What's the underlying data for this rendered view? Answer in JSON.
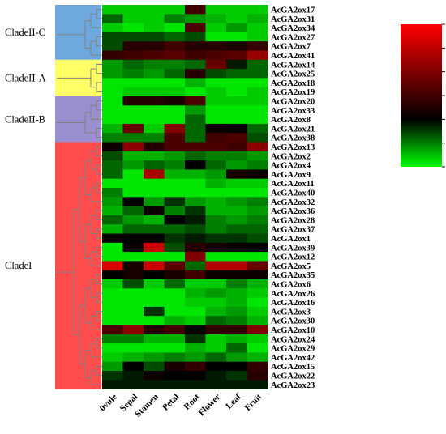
{
  "chart_data": {
    "type": "heatmap",
    "columns": [
      "0vule",
      "Sepal",
      "Stamen",
      "Petal",
      "Root",
      "Flower",
      "Leaf",
      "Fruit"
    ],
    "rows": [
      "AcGA2ox17",
      "AcGA2ox31",
      "AcGA2ox34",
      "AcGA2ox27",
      "AcGA2ox7",
      "AcGA2ox41",
      "AcGA2ox14",
      "AcGA2ox25",
      "AcGA2ox18",
      "AcGA2ox19",
      "AcGA2ox20",
      "AcGA2ox33",
      "AcGA2ox8",
      "AcGA2ox21",
      "AcGA2ox38",
      "AcGA2ox13",
      "AcGA2ox2",
      "AcGA2ox4",
      "AcGA2ox9",
      "AcGA2ox11",
      "AcGA2ox40",
      "AcGA2ox32",
      "AcGA2ox36",
      "AcGA2ox28",
      "AcGA2ox37",
      "AcGA2ox1",
      "AcGA2ox39",
      "AcGA2ox12",
      "AcGA2ox5",
      "AcGA2ox35",
      "AcGA2ox6",
      "AcGA2ox26",
      "AcGA2ox16",
      "AcGA2ox3",
      "AcGA2ox30",
      "AcGA2ox10",
      "AcGA2ox24",
      "AcGA2ox29",
      "AcGA2ox42",
      "AcGA2ox15",
      "AcGA2ox22",
      "AcGA2ox23"
    ],
    "values": [
      [
        0.2,
        0.2,
        0.2,
        0.2,
        1.5,
        0.2,
        0.2,
        0.2
      ],
      [
        0.6,
        0.2,
        0.2,
        0.5,
        0.4,
        0.3,
        0.2,
        0.3
      ],
      [
        0.2,
        0.1,
        0.2,
        0.1,
        1.6,
        0.2,
        0.4,
        0.2
      ],
      [
        0.7,
        0.7,
        0.7,
        0.6,
        0.7,
        0.1,
        0.1,
        0.2
      ],
      [
        0.7,
        1.3,
        1.3,
        1.5,
        1.3,
        1.3,
        1.2,
        1.4
      ],
      [
        1.4,
        1.5,
        1.6,
        1.7,
        1.5,
        1.6,
        1.7,
        2.2
      ],
      [
        0.4,
        0.6,
        0.5,
        0.5,
        0.6,
        1.8,
        0.9,
        0.6
      ],
      [
        0.4,
        0.5,
        0.4,
        0.6,
        1.3,
        0.7,
        0.6,
        0.6
      ],
      [
        0.1,
        0.1,
        0.1,
        0.1,
        0.3,
        0.1,
        0.1,
        0.1
      ],
      [
        0.1,
        0.2,
        0.2,
        0.2,
        0.1,
        0.2,
        0.1,
        0.2
      ],
      [
        0.1,
        1.3,
        1.3,
        1.2,
        1.6,
        0.2,
        0.2,
        0.2
      ],
      [
        0.1,
        0.1,
        0.1,
        0.1,
        0.4,
        0.1,
        0.1,
        0.1
      ],
      [
        0.1,
        0.1,
        0.1,
        0.1,
        0.6,
        0.1,
        0.1,
        0.1
      ],
      [
        0.3,
        1.8,
        0.2,
        2.0,
        0.6,
        1.1,
        1.0,
        0.6
      ],
      [
        0.5,
        0.5,
        0.5,
        1.6,
        0.6,
        1.5,
        1.6,
        0.7
      ],
      [
        1.1,
        2.1,
        1.3,
        1.6,
        1.6,
        1.6,
        1.5,
        2.1
      ],
      [
        0.7,
        0.3,
        0.3,
        0.4,
        0.6,
        0.5,
        0.5,
        0.4
      ],
      [
        0.6,
        0.4,
        0.6,
        0.5,
        1.0,
        0.6,
        0.4,
        0.5
      ],
      [
        0.6,
        0.1,
        2.3,
        0.3,
        0.3,
        0.4,
        1.2,
        1.1
      ],
      [
        0.1,
        0.1,
        0.1,
        0.1,
        0.1,
        0.3,
        0.2,
        0.2
      ],
      [
        0.5,
        0.1,
        0.1,
        0.1,
        0.1,
        0.1,
        0.1,
        0.1
      ],
      [
        0.4,
        1.0,
        0.4,
        0.8,
        0.4,
        0.3,
        0.4,
        0.5
      ],
      [
        0.3,
        0.6,
        1.1,
        0.5,
        0.8,
        0.3,
        0.3,
        0.4
      ],
      [
        0.6,
        0.4,
        0.3,
        1.0,
        0.9,
        0.5,
        0.4,
        0.5
      ],
      [
        0.3,
        0.6,
        0.6,
        0.6,
        0.7,
        0.5,
        0.6,
        0.6
      ],
      [
        1.1,
        1.0,
        1.0,
        0.8,
        0.9,
        0.8,
        0.8,
        0.7
      ],
      [
        0.1,
        1.1,
        2.6,
        0.7,
        1.3,
        1.2,
        1.1,
        1.0
      ],
      [
        0.1,
        0.1,
        0.1,
        0.1,
        2.0,
        0.1,
        0.1,
        0.1
      ],
      [
        2.7,
        1.2,
        2.6,
        1.7,
        0.6,
        2.4,
        2.4,
        1.8
      ],
      [
        1.0,
        1.2,
        1.0,
        1.2,
        1.5,
        1.1,
        1.1,
        1.1
      ],
      [
        0.2,
        0.7,
        0.2,
        0.6,
        0.2,
        0.2,
        0.5,
        0.3
      ],
      [
        0.1,
        0.1,
        0.1,
        0.1,
        0.3,
        0.4,
        0.3,
        0.2
      ],
      [
        0.1,
        0.1,
        0.1,
        0.1,
        0.2,
        0.2,
        0.3,
        0.1
      ],
      [
        0.1,
        0.1,
        0.8,
        0.1,
        0.1,
        0.3,
        0.4,
        0.2
      ],
      [
        0.1,
        0.1,
        0.1,
        0.3,
        0.2,
        0.6,
        0.5,
        0.3
      ],
      [
        1.6,
        2.1,
        1.3,
        1.5,
        1.0,
        1.4,
        1.4,
        2.0
      ],
      [
        0.5,
        0.5,
        0.3,
        0.3,
        0.8,
        0.2,
        0.3,
        0.2
      ],
      [
        0.1,
        0.1,
        0.1,
        0.1,
        0.3,
        0.2,
        0.6,
        0.1
      ],
      [
        0.2,
        0.3,
        0.4,
        0.5,
        0.4,
        0.6,
        0.4,
        0.3
      ],
      [
        0.4,
        1.0,
        0.7,
        1.2,
        1.4,
        1.0,
        1.0,
        1.4
      ],
      [
        0.8,
        0.9,
        1.1,
        1.0,
        1.0,
        0.9,
        0.8,
        1.3
      ],
      [
        0.9,
        0.9,
        0.9,
        0.9,
        0.9,
        0.9,
        0.9,
        0.9
      ]
    ],
    "color_scale": {
      "min": 0.0,
      "max": 3.0,
      "ticks": [
        "0.00",
        "0.50",
        "1.00",
        "1.50",
        "2.00",
        "2.50",
        "3.00"
      ],
      "low_color": "#00ff00",
      "mid_color": "#000000",
      "high_color": "#ff0000"
    },
    "clades": [
      {
        "label": "CladeII-C",
        "color": "#6fa8dc",
        "start_row": 0,
        "end_row": 5
      },
      {
        "label": "CladeII-A",
        "color": "#ffff66",
        "start_row": 6,
        "end_row": 9
      },
      {
        "label": "CladeII-B",
        "color": "#9b8fd0",
        "start_row": 10,
        "end_row": 14
      },
      {
        "label": "CladeI",
        "color": "#ff4d4d",
        "start_row": 15,
        "end_row": 41
      }
    ],
    "legend_position": "top-right",
    "dendrogram_color": "#808080"
  }
}
